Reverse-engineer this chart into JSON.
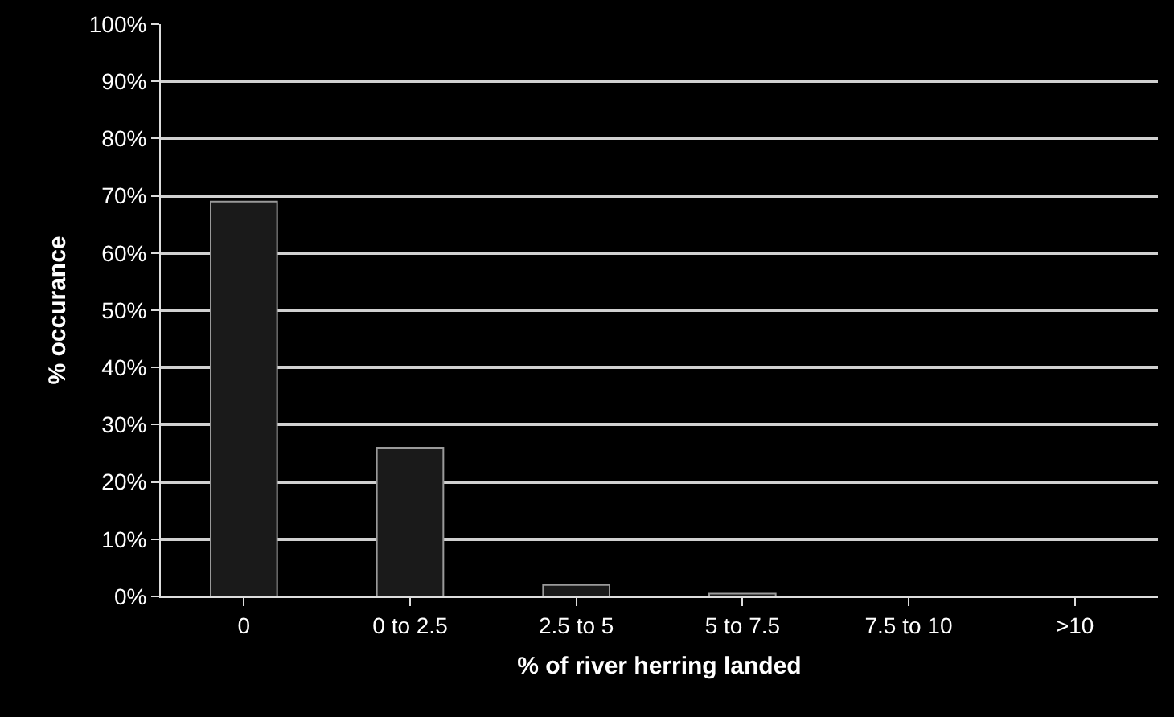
{
  "chart_data": {
    "type": "bar",
    "xlabel": "% of river herring landed",
    "ylabel": "% occurance",
    "categories": [
      "0",
      "0 to 2.5",
      "2.5 to 5",
      "5 to 7.5",
      "7.5 to 10",
      ">10"
    ],
    "values": [
      69,
      26,
      2,
      0.5,
      0,
      0
    ],
    "color": "#1a1a1a",
    "ylim": [
      0,
      100
    ],
    "yticks": [
      {
        "value": 0,
        "label": "0%"
      },
      {
        "value": 10,
        "label": "10%"
      },
      {
        "value": 20,
        "label": "20%"
      },
      {
        "value": 30,
        "label": "30%"
      },
      {
        "value": 40,
        "label": "40%"
      },
      {
        "value": 50,
        "label": "50%"
      },
      {
        "value": 60,
        "label": "60%"
      },
      {
        "value": 70,
        "label": "70%"
      },
      {
        "value": 80,
        "label": "80%"
      },
      {
        "value": 90,
        "label": "90%"
      },
      {
        "value": 100,
        "label": "100%"
      }
    ],
    "grid": "y"
  }
}
